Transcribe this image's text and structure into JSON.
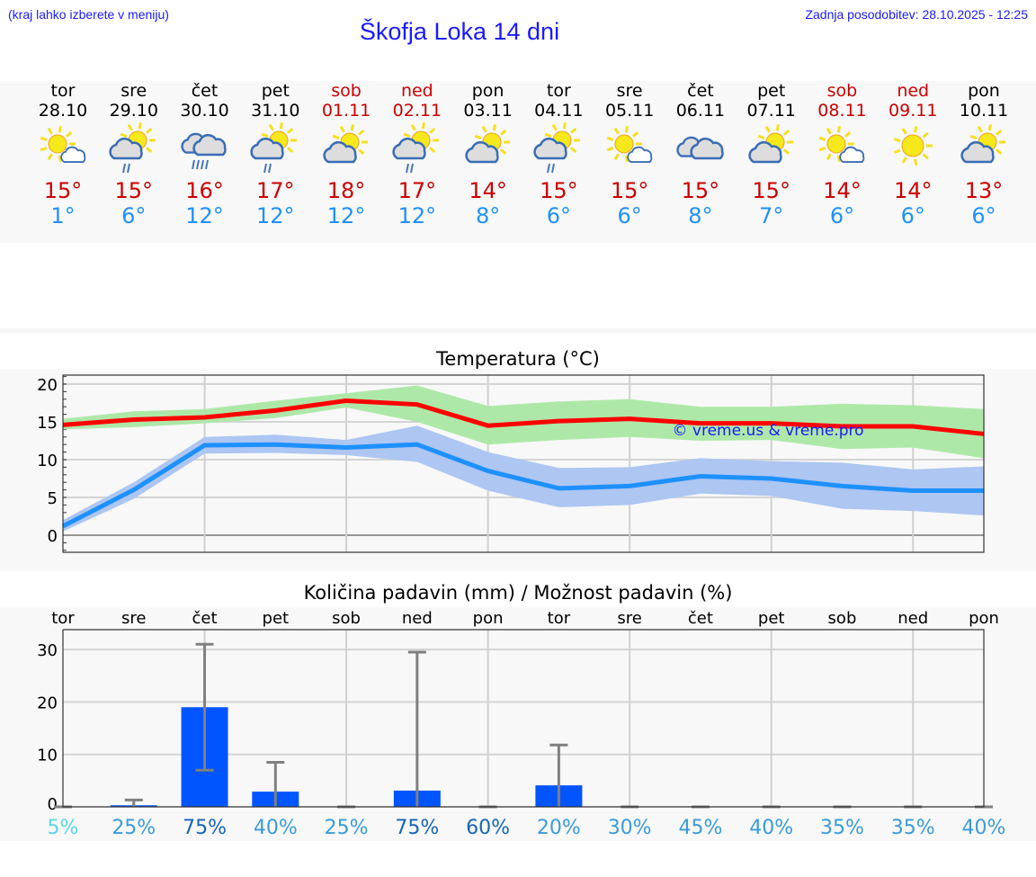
{
  "header": {
    "note": "(kraj lahko izberete v meniju)",
    "title": "Škofja Loka 14 dni",
    "updated": "Zadnja posodobitev: 28.10.2025 - 12:25"
  },
  "days": [
    {
      "name": "tor",
      "date": "28.10",
      "weekend": false,
      "icon": "sun-small-cloud",
      "max": "15°",
      "min": "1°"
    },
    {
      "name": "sre",
      "date": "29.10",
      "weekend": false,
      "icon": "sun-cloud-rain",
      "max": "15°",
      "min": "6°"
    },
    {
      "name": "čet",
      "date": "30.10",
      "weekend": false,
      "icon": "cloud-heavy-rain",
      "max": "16°",
      "min": "12°"
    },
    {
      "name": "pet",
      "date": "31.10",
      "weekend": false,
      "icon": "sun-cloud-rain",
      "max": "17°",
      "min": "12°"
    },
    {
      "name": "sob",
      "date": "01.11",
      "weekend": true,
      "icon": "sun-cloud",
      "max": "18°",
      "min": "12°"
    },
    {
      "name": "ned",
      "date": "02.11",
      "weekend": true,
      "icon": "sun-cloud-rain",
      "max": "17°",
      "min": "12°"
    },
    {
      "name": "pon",
      "date": "03.11",
      "weekend": false,
      "icon": "sun-cloud",
      "max": "14°",
      "min": "8°"
    },
    {
      "name": "tor",
      "date": "04.11",
      "weekend": false,
      "icon": "sun-cloud-rain",
      "max": "15°",
      "min": "6°"
    },
    {
      "name": "sre",
      "date": "05.11",
      "weekend": false,
      "icon": "sun-small-cloud",
      "max": "15°",
      "min": "6°"
    },
    {
      "name": "čet",
      "date": "06.11",
      "weekend": false,
      "icon": "cloud",
      "max": "15°",
      "min": "8°"
    },
    {
      "name": "pet",
      "date": "07.11",
      "weekend": false,
      "icon": "sun-cloud",
      "max": "15°",
      "min": "7°"
    },
    {
      "name": "sob",
      "date": "08.11",
      "weekend": true,
      "icon": "sun-small-cloud",
      "max": "14°",
      "min": "6°"
    },
    {
      "name": "ned",
      "date": "09.11",
      "weekend": true,
      "icon": "sun",
      "max": "14°",
      "min": "6°"
    },
    {
      "name": "pon",
      "date": "10.11",
      "weekend": false,
      "icon": "sun-cloud",
      "max": "13°",
      "min": "6°"
    }
  ],
  "colors": {
    "max": "#ff0000",
    "min": "#1e90ff",
    "max_band": "#aee8a8",
    "min_band": "#adc6f2",
    "bar": "#0055ff",
    "err": "#808080",
    "watermark": "#1a1aff"
  },
  "chart_data": [
    {
      "type": "line",
      "title": "Temperatura (°C)",
      "ylim": [
        -2.5,
        21
      ],
      "yticks": [
        "0",
        "5",
        "10",
        "15",
        "20"
      ],
      "watermark": "© vreme.us & vreme.pro",
      "series": [
        {
          "name": "max",
          "values": [
            14.6,
            15.3,
            15.6,
            16.5,
            17.8,
            17.3,
            14.5,
            15.1,
            15.4,
            14.8,
            14.8,
            14.4,
            14.4,
            13.4
          ],
          "band_low": [
            14,
            14.3,
            14.8,
            15.5,
            16.9,
            15,
            12,
            12.6,
            13,
            12.5,
            12.6,
            11.4,
            11.6,
            10.2
          ],
          "band_high": [
            15.4,
            16.4,
            16.7,
            17.8,
            18.8,
            19.8,
            17.1,
            17.7,
            18,
            17,
            17,
            17.4,
            17.2,
            16.7
          ]
        },
        {
          "name": "min",
          "values": [
            1.2,
            6,
            11.9,
            12,
            11.6,
            12,
            8.5,
            6.2,
            6.5,
            7.8,
            7.5,
            6.5,
            5.9,
            5.9
          ],
          "band_low": [
            0.5,
            4.8,
            10.8,
            10.9,
            10.6,
            9.7,
            5.9,
            3.7,
            4,
            5.5,
            5.2,
            3.5,
            3.2,
            2.6
          ],
          "band_high": [
            2,
            7,
            13,
            13.3,
            12.6,
            14.5,
            11,
            8.9,
            9,
            10.2,
            9.8,
            9.6,
            8.7,
            9.1
          ]
        }
      ]
    },
    {
      "type": "bar",
      "title": "Količina padavin (mm) / Možnost padavin (%)",
      "ylim": [
        0,
        34
      ],
      "yticks": [
        "0",
        "10",
        "20",
        "30"
      ],
      "categories": [
        "tor",
        "sre",
        "čet",
        "pet",
        "sob",
        "ned",
        "pon",
        "tor",
        "sre",
        "čet",
        "pet",
        "sob",
        "ned",
        "pon"
      ],
      "values": [
        0,
        0.3,
        19,
        2.9,
        0,
        3.1,
        0,
        4.1,
        0,
        0,
        0,
        0,
        0,
        0
      ],
      "err_low": [
        0,
        0,
        7,
        0,
        0,
        0,
        0,
        0,
        0,
        0,
        0,
        0,
        0,
        0
      ],
      "err_high": [
        0,
        1.3,
        31,
        8.5,
        0,
        29.5,
        0,
        11.8,
        0,
        0,
        0,
        0,
        0,
        0
      ],
      "probability": [
        "5%",
        "25%",
        "75%",
        "40%",
        "25%",
        "75%",
        "60%",
        "20%",
        "30%",
        "45%",
        "40%",
        "35%",
        "35%",
        "40%"
      ],
      "probability_colors": [
        "#5bd7e6",
        "#3a9bd9",
        "#1565b8",
        "#3a9bd9",
        "#3a9bd9",
        "#1565b8",
        "#1565b8",
        "#3a9bd9",
        "#3a9bd9",
        "#3a9bd9",
        "#3a9bd9",
        "#3a9bd9",
        "#3a9bd9",
        "#3a9bd9"
      ]
    }
  ]
}
